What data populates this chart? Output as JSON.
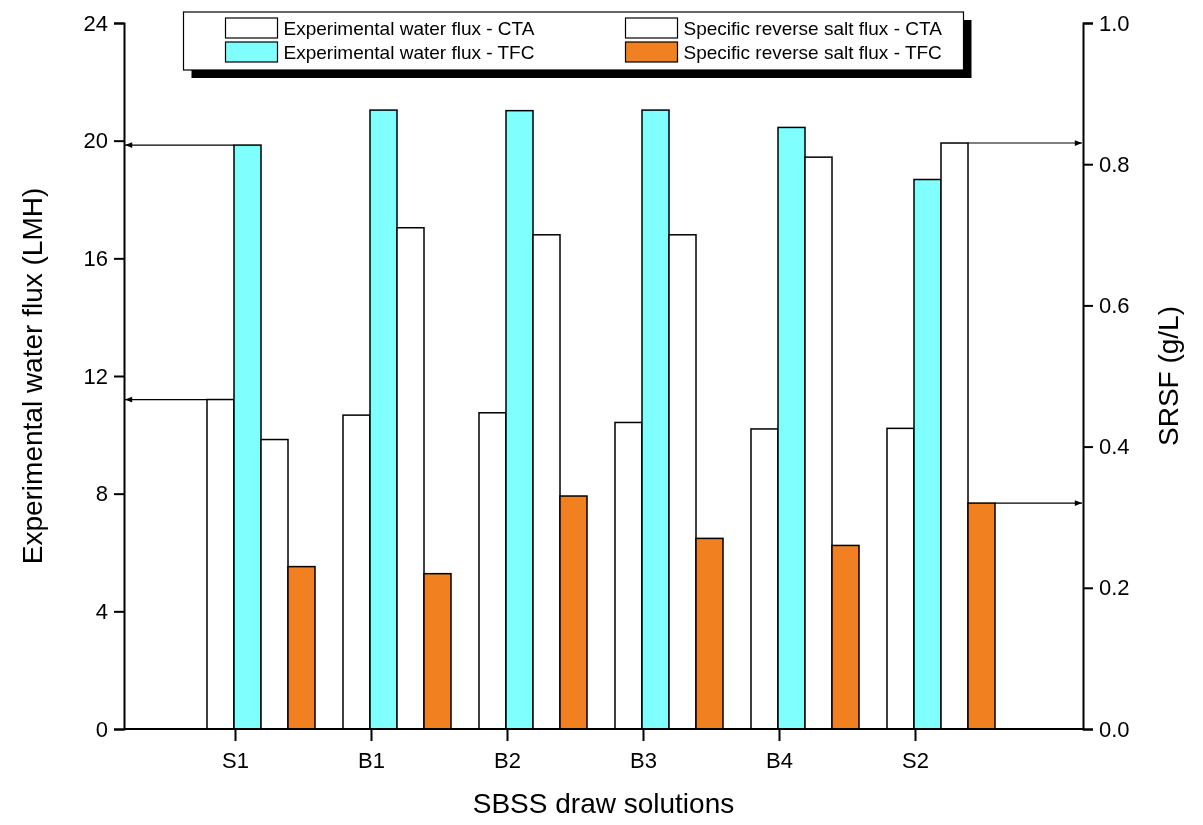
{
  "chart_data": {
    "type": "bar",
    "xlabel": "SBSS draw solutions",
    "ylabel": "Experimental water flux (LMH)",
    "y2label": "SRSF (g/L)",
    "categories": [
      "S1",
      "B1",
      "B2",
      "B3",
      "B4",
      "S2"
    ],
    "series": [
      {
        "name": "Experimental water flux - CTA",
        "color": "#ffffff",
        "values": [
          11.2,
          10.67,
          10.75,
          10.42,
          10.2,
          10.22
        ],
        "axis": "y"
      },
      {
        "name": "Experimental water flux - TFC",
        "color": "#80ffff",
        "values": [
          19.85,
          21.04,
          21.02,
          21.04,
          20.45,
          18.68
        ],
        "axis": "y"
      },
      {
        "name": "Specific reverse salt flux - CTA",
        "color": "#ffffff",
        "values": [
          0.41,
          0.71,
          0.7,
          0.7,
          0.81,
          0.83
        ],
        "axis": "y2"
      },
      {
        "name": "Specific reverse salt flux - TFC",
        "color": "#f08020",
        "values": [
          0.23,
          0.22,
          0.33,
          0.27,
          0.26,
          0.32
        ],
        "axis": "y2"
      }
    ],
    "ylim": [
      0,
      24
    ],
    "yticks": [
      0,
      4,
      8,
      12,
      16,
      20,
      24
    ],
    "y2lim": [
      0,
      1
    ],
    "y2ticks": [
      {
        "value": 0,
        "label": "0.0"
      },
      0.2,
      0.4,
      0.6,
      0.8,
      {
        "value": 1,
        "label": "1.0"
      }
    ],
    "legend": "top"
  }
}
